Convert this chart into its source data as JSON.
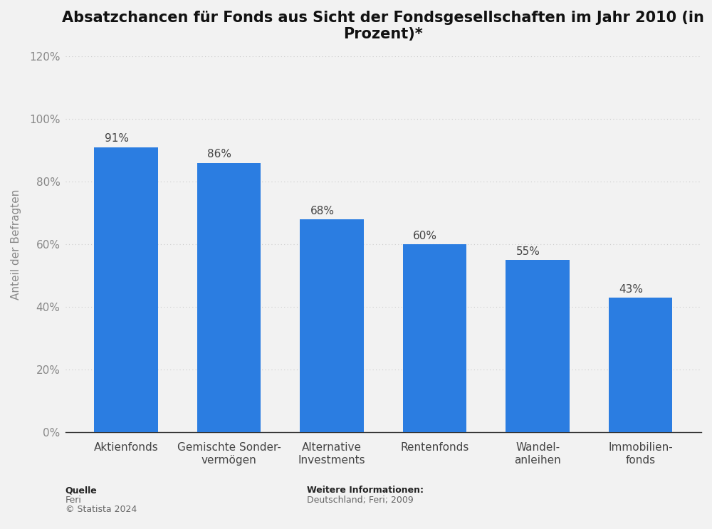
{
  "title": "Absatzchancen für Fonds aus Sicht der Fondsgesellschaften im Jahr 2010 (in\nProzent)*",
  "categories": [
    "Aktienfonds",
    "Gemischte Sonder-\nvermögen",
    "Alternative\nInvestments",
    "Rentenfonds",
    "Wandel-\nanleihen",
    "Immobilien-\nfonds"
  ],
  "values": [
    91,
    86,
    68,
    60,
    55,
    43
  ],
  "bar_color": "#2b7de1",
  "background_color": "#f2f2f2",
  "plot_bg_color": "#f2f2f2",
  "inner_bg_color": "#e8e8e8",
  "ylabel": "Anteil der Befragten",
  "ylim": [
    0,
    120
  ],
  "yticks": [
    0,
    20,
    40,
    60,
    80,
    100,
    120
  ],
  "ytick_labels": [
    "0%",
    "20%",
    "40%",
    "60%",
    "80%",
    "100%",
    "120%"
  ],
  "title_fontsize": 15,
  "label_fontsize": 11,
  "tick_fontsize": 11,
  "value_fontsize": 11,
  "footer_left_bold": "Quelle",
  "footer_left_1": "Feri",
  "footer_left_2": "© Statista 2024",
  "footer_right_bold": "Weitere Informationen:",
  "footer_right_1": "Deutschland; Feri; 2009",
  "grid_color": "#cccccc",
  "axis_color": "#888888",
  "text_color": "#444444",
  "bar_width": 0.62
}
